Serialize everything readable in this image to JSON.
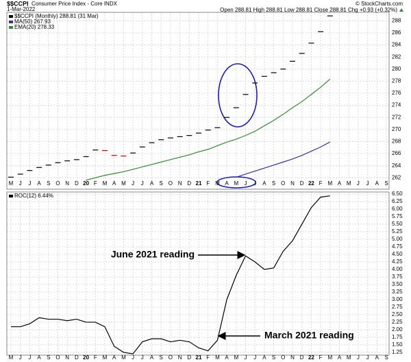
{
  "chart_data": [
    {
      "type": "line",
      "title": "$$CCPI",
      "subtitle": "Consumer Price Index - Core INDX",
      "date": "1-Mar-2022",
      "quote": "Open 288.81 High 288.81 Low 288.81 Close 288.81 Chg +0.93 (+0.32%)",
      "credit": "© StockCharts.com",
      "categories": [
        "M",
        "J",
        "J",
        "A",
        "S",
        "O",
        "N",
        "D",
        "20",
        "F",
        "M",
        "A",
        "M",
        "J",
        "J",
        "A",
        "S",
        "O",
        "N",
        "D",
        "21",
        "F",
        "M",
        "A",
        "M",
        "J",
        "J",
        "A",
        "S",
        "O",
        "N",
        "D",
        "22",
        "F",
        "M",
        "A",
        "M",
        "J",
        "J",
        "A",
        "S"
      ],
      "ylim": [
        260.1,
        289.4
      ],
      "yticks": [
        262,
        264,
        266,
        268,
        270,
        272,
        274,
        276,
        278,
        280,
        282,
        284,
        286,
        288
      ],
      "grid": true,
      "down_color": "#d00000",
      "series": [
        {
          "name": "$$CCPI (Monthly) 288.81 (31 Mar)",
          "style": "tick",
          "color": "#000000",
          "values": [
            262.1,
            262.6,
            263.2,
            263.7,
            264.1,
            264.5,
            264.8,
            265.0,
            265.5,
            266.6,
            266.5,
            265.7,
            265.6,
            266.1,
            267.1,
            267.8,
            268.3,
            268.6,
            268.8,
            269.0,
            269.4,
            269.9,
            270.3,
            272.0,
            273.6,
            275.8,
            277.7,
            278.8,
            279.4,
            280.0,
            281.3,
            282.6,
            284.3,
            286.2,
            288.81,
            null,
            null,
            null,
            null,
            null,
            null
          ]
        },
        {
          "name": "MA(50) 267.93",
          "style": "line",
          "color": "#3b2fa0",
          "values": [
            null,
            null,
            null,
            null,
            null,
            null,
            null,
            null,
            null,
            null,
            null,
            null,
            null,
            null,
            null,
            null,
            null,
            null,
            null,
            null,
            null,
            null,
            null,
            null,
            262.1,
            262.6,
            263.1,
            263.6,
            264.1,
            264.6,
            265.1,
            265.7,
            266.4,
            267.1,
            267.93,
            null,
            null,
            null,
            null,
            null,
            null
          ]
        },
        {
          "name": "EMA(20) 278.33",
          "style": "line",
          "color": "#2e8b2e",
          "values": [
            null,
            null,
            null,
            null,
            null,
            null,
            null,
            null,
            261.6,
            262.0,
            262.4,
            262.7,
            263.0,
            263.4,
            263.8,
            264.2,
            264.6,
            265.0,
            265.4,
            265.8,
            266.3,
            266.7,
            267.3,
            267.9,
            268.4,
            269.0,
            269.7,
            270.6,
            271.5,
            272.5,
            273.6,
            274.6,
            275.8,
            277.0,
            278.33,
            null,
            null,
            null,
            null,
            null,
            null
          ]
        }
      ]
    },
    {
      "type": "line",
      "categories": [
        "M",
        "J",
        "J",
        "A",
        "S",
        "O",
        "N",
        "D",
        "20",
        "F",
        "M",
        "A",
        "M",
        "J",
        "J",
        "A",
        "S",
        "O",
        "N",
        "D",
        "21",
        "F",
        "M",
        "A",
        "M",
        "J",
        "J",
        "A",
        "S",
        "O",
        "N",
        "D",
        "22",
        "F",
        "M",
        "A",
        "M",
        "J",
        "J",
        "A",
        "S"
      ],
      "ylim": [
        1.18,
        6.57
      ],
      "yticks": [
        1.25,
        {
          "value": 1.5,
          "label": "1.50"
        },
        1.75,
        {
          "value": 2,
          "label": "2.00"
        },
        2.25,
        {
          "value": 2.5,
          "label": "2.50"
        },
        2.75,
        {
          "value": 3,
          "label": "3.00"
        },
        3.25,
        {
          "value": 3.5,
          "label": "3.50"
        },
        3.75,
        {
          "value": 4,
          "label": "4.00"
        },
        4.25,
        {
          "value": 4.5,
          "label": "4.50"
        },
        4.75,
        {
          "value": 5,
          "label": "5.00"
        },
        5.25,
        {
          "value": 5.5,
          "label": "5.50"
        },
        5.75,
        {
          "value": 6,
          "label": "6.00"
        },
        6.25,
        {
          "value": 6.5,
          "label": "6.50"
        }
      ],
      "grid": true,
      "series": [
        {
          "name": "ROC(12) 6.44%",
          "style": "line",
          "color": "#000000",
          "values": [
            2.1,
            2.1,
            2.2,
            2.4,
            2.35,
            2.35,
            2.3,
            2.35,
            2.25,
            2.25,
            2.1,
            1.45,
            1.25,
            1.2,
            1.6,
            1.7,
            1.7,
            1.6,
            1.65,
            1.6,
            1.4,
            1.3,
            1.65,
            3.0,
            3.8,
            4.45,
            4.25,
            4.0,
            4.05,
            4.6,
            4.95,
            5.5,
            6.05,
            6.4,
            6.44,
            null,
            null,
            null,
            null,
            null,
            null
          ]
        }
      ],
      "annotations": [
        "June 2021 reading",
        "March 2021 reading"
      ]
    }
  ]
}
